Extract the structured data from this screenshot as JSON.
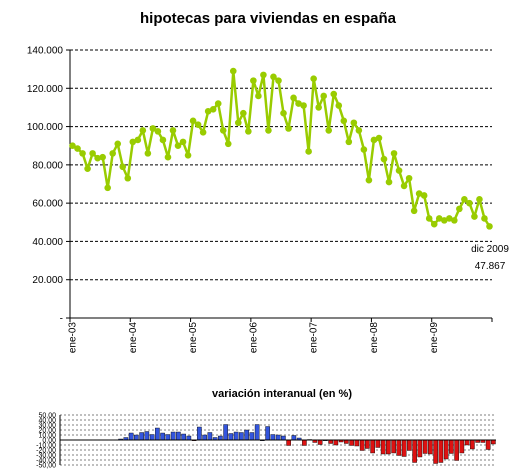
{
  "chart_data": [
    {
      "type": "line",
      "title": "hipotecas para viviendas en españa",
      "ylim": [
        0,
        140000
      ],
      "y_ticks": [
        "140.000",
        "120.000",
        "100.000",
        "80.000",
        "60.000",
        "40.000",
        "20.000",
        "-"
      ],
      "y_tick_values": [
        140000,
        120000,
        100000,
        80000,
        60000,
        40000,
        20000,
        0
      ],
      "x_tick_labels": [
        "ene-03",
        "ene-04",
        "ene-05",
        "ene-06",
        "ene-07",
        "ene-08",
        "ene-09"
      ],
      "grid": "horizontal dashed",
      "line_color": "#99cc00",
      "x": [
        "ene-03",
        "feb-03",
        "mar-03",
        "abr-03",
        "may-03",
        "jun-03",
        "jul-03",
        "ago-03",
        "sep-03",
        "oct-03",
        "nov-03",
        "dic-03",
        "ene-04",
        "feb-04",
        "mar-04",
        "abr-04",
        "may-04",
        "jun-04",
        "jul-04",
        "ago-04",
        "sep-04",
        "oct-04",
        "nov-04",
        "dic-04",
        "ene-05",
        "feb-05",
        "mar-05",
        "abr-05",
        "may-05",
        "jun-05",
        "jul-05",
        "ago-05",
        "sep-05",
        "oct-05",
        "nov-05",
        "dic-05",
        "ene-06",
        "feb-06",
        "mar-06",
        "abr-06",
        "may-06",
        "jun-06",
        "jul-06",
        "ago-06",
        "sep-06",
        "oct-06",
        "nov-06",
        "dic-06",
        "ene-07",
        "feb-07",
        "mar-07",
        "abr-07",
        "may-07",
        "jun-07",
        "jul-07",
        "ago-07",
        "sep-07",
        "oct-07",
        "nov-07",
        "dic-07",
        "ene-08",
        "feb-08",
        "mar-08",
        "abr-08",
        "may-08",
        "jun-08",
        "jul-08",
        "ago-08",
        "sep-08",
        "oct-08",
        "nov-08",
        "dic-08",
        "ene-09",
        "feb-09",
        "mar-09",
        "abr-09",
        "may-09",
        "jun-09",
        "jul-09",
        "ago-09",
        "sep-09",
        "oct-09",
        "nov-09",
        "dic-09"
      ],
      "values": [
        90000,
        88500,
        86000,
        78000,
        86000,
        83500,
        84000,
        68000,
        86000,
        91000,
        79000,
        73000,
        92000,
        93000,
        98000,
        86000,
        99000,
        97500,
        93000,
        84000,
        98000,
        90000,
        92000,
        85000,
        103000,
        101000,
        97000,
        108000,
        109000,
        112000,
        98000,
        91000,
        129000,
        102000,
        107000,
        97500,
        124000,
        116000,
        127000,
        98000,
        126000,
        124000,
        107000,
        99000,
        115000,
        112000,
        111000,
        87000,
        125000,
        110000,
        116000,
        98000,
        117000,
        111000,
        103000,
        92000,
        102000,
        98000,
        88000,
        72000,
        93000,
        94000,
        83000,
        71000,
        86000,
        77000,
        69000,
        73000,
        56000,
        65000,
        64000,
        52000,
        49000,
        52000,
        51000,
        52000,
        51000,
        57000,
        62000,
        60000,
        53000,
        62000,
        52000,
        47867
      ],
      "annotation": {
        "label": "dic 2009",
        "value": "47.867"
      }
    },
    {
      "type": "bar",
      "title": "variación interanual (en %)",
      "ylim": [
        -50,
        50
      ],
      "y_ticks": [
        "50,00",
        "40,00",
        "30,00",
        "20,00",
        "10,00",
        "0,00",
        "-10,00",
        "-20,00",
        "-30,00",
        "-40,00",
        "-50,00"
      ],
      "y_tick_values": [
        50,
        40,
        30,
        20,
        10,
        0,
        -10,
        -20,
        -30,
        -40,
        -50
      ],
      "positive_color": "#3355dd",
      "negative_color": "#dd1111",
      "x": [
        "ene-04",
        "feb-04",
        "mar-04",
        "abr-04",
        "may-04",
        "jun-04",
        "jul-04",
        "ago-04",
        "sep-04",
        "oct-04",
        "nov-04",
        "dic-04",
        "ene-05",
        "feb-05",
        "mar-05",
        "abr-05",
        "may-05",
        "jun-05",
        "jul-05",
        "ago-05",
        "sep-05",
        "oct-05",
        "nov-05",
        "dic-05",
        "ene-06",
        "feb-06",
        "mar-06",
        "abr-06",
        "may-06",
        "jun-06",
        "jul-06",
        "ago-06",
        "sep-06",
        "oct-06",
        "nov-06",
        "dic-06",
        "ene-07",
        "feb-07",
        "mar-07",
        "abr-07",
        "may-07",
        "jun-07",
        "jul-07",
        "ago-07",
        "sep-07",
        "oct-07",
        "nov-07",
        "dic-07",
        "ene-08",
        "feb-08",
        "mar-08",
        "abr-08",
        "may-08",
        "jun-08",
        "jul-08",
        "ago-08",
        "sep-08",
        "oct-08",
        "nov-08",
        "dic-08",
        "ene-09",
        "feb-09",
        "mar-09",
        "abr-09",
        "may-09",
        "jun-09",
        "jul-09",
        "ago-09",
        "sep-09",
        "oct-09",
        "nov-09",
        "dic-09"
      ],
      "values": [
        2,
        5,
        14,
        10,
        15,
        17,
        11,
        24,
        14,
        11,
        16,
        16,
        12,
        8,
        -1,
        26,
        10,
        15,
        5,
        8,
        31,
        13,
        16,
        15,
        20,
        15,
        31,
        0,
        27,
        11,
        10,
        8,
        -11,
        9,
        4,
        -11,
        1,
        -5,
        -9,
        0,
        -7,
        -10,
        -4,
        -7,
        -11,
        -12,
        -21,
        -17,
        -26,
        -15,
        -28,
        -28,
        -26,
        -31,
        -33,
        -21,
        -45,
        -34,
        -27,
        -28,
        -47,
        -45,
        -38,
        -27,
        -41,
        -26,
        -10,
        -18,
        -5,
        -5,
        -19,
        -8
      ]
    }
  ]
}
